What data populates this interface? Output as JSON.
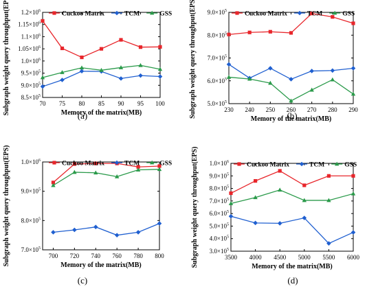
{
  "chart_data": [
    {
      "type": "line",
      "panel_label": "(a)",
      "xlabel": "Memory of the matrix(MB)",
      "ylabel": "Subgraph weight query throughput(EPS)",
      "x": [
        70,
        75,
        80,
        85,
        90,
        95,
        100
      ],
      "xlim": [
        70,
        100
      ],
      "xticks": [
        "70",
        "75",
        "80",
        "85",
        "90",
        "95",
        "100"
      ],
      "yticks": [
        {
          "value": 850000,
          "mantissa": "8.5×10",
          "exp": "5"
        },
        {
          "value": 900000,
          "mantissa": "9.0×10",
          "exp": "5"
        },
        {
          "value": 950000,
          "mantissa": "9.5×10",
          "exp": "5"
        },
        {
          "value": 1000000,
          "mantissa": "1.0×10",
          "exp": "6"
        },
        {
          "value": 1050000,
          "mantissa": "1.05×10",
          "exp": "6"
        },
        {
          "value": 1100000,
          "mantissa": "1.1×10",
          "exp": "6"
        },
        {
          "value": 1150000,
          "mantissa": "1.15×10",
          "exp": "6"
        },
        {
          "value": 1200000,
          "mantissa": "1.2×10",
          "exp": "6"
        }
      ],
      "ylim": [
        850000,
        1200000
      ],
      "legend_position": "top",
      "series": [
        {
          "name": "Cuckoo Matrix",
          "color": "#e8262b",
          "marker": "square",
          "values": [
            1165000,
            1052000,
            1015000,
            1050000,
            1087000,
            1057000,
            1058000
          ]
        },
        {
          "name": "TCM",
          "color": "#1f5fd0",
          "marker": "diamond",
          "values": [
            895000,
            922000,
            958000,
            957000,
            928000,
            940000,
            936000
          ]
        },
        {
          "name": "GSS",
          "color": "#2a9a4a",
          "marker": "triangle",
          "values": [
            932000,
            953000,
            972000,
            962000,
            973000,
            982000,
            966000
          ]
        }
      ]
    },
    {
      "type": "line",
      "panel_label": "(b)",
      "xlabel": "Memory of the matrix(MB)",
      "ylabel": "Subgraph weight query throughput(EPS)",
      "x": [
        230,
        240,
        250,
        260,
        270,
        280,
        290
      ],
      "xlim": [
        230,
        290
      ],
      "xticks": [
        "230",
        "240",
        "250",
        "260",
        "270",
        "280",
        "290"
      ],
      "yticks": [
        {
          "value": 500000,
          "mantissa": "5.0×10",
          "exp": "5"
        },
        {
          "value": 600000,
          "mantissa": "6.0×10",
          "exp": "5"
        },
        {
          "value": 700000,
          "mantissa": "7.0×10",
          "exp": "5"
        },
        {
          "value": 800000,
          "mantissa": "8.0×10",
          "exp": "5"
        },
        {
          "value": 900000,
          "mantissa": "9.0×10",
          "exp": "5"
        }
      ],
      "ylim": [
        500000,
        900000
      ],
      "legend_position": "top",
      "series": [
        {
          "name": "Cuckoo Matrix",
          "color": "#e8262b",
          "marker": "square",
          "values": [
            803000,
            812000,
            815000,
            810000,
            895000,
            880000,
            852000
          ]
        },
        {
          "name": "TCM",
          "color": "#1f5fd0",
          "marker": "diamond",
          "values": [
            672000,
            612000,
            655000,
            607000,
            643000,
            645000,
            655000
          ]
        },
        {
          "name": "GSS",
          "color": "#2a9a4a",
          "marker": "triangle",
          "values": [
            616000,
            608000,
            590000,
            512000,
            560000,
            605000,
            542000
          ]
        }
      ]
    },
    {
      "type": "line",
      "panel_label": "(c)",
      "xlabel": "Memory of the matrix(MB)",
      "ylabel": "Subgraph weight query throughput(EPS)",
      "x": [
        700,
        720,
        740,
        760,
        780,
        800
      ],
      "xlim": [
        690,
        800
      ],
      "xticks": [
        "700",
        "720",
        "740",
        "760",
        "780",
        "800"
      ],
      "yticks": [
        {
          "value": 700000,
          "mantissa": "7.0×10",
          "exp": "5"
        },
        {
          "value": 800000,
          "mantissa": "8.0×10",
          "exp": "5"
        },
        {
          "value": 900000,
          "mantissa": "9.0×10",
          "exp": "5"
        },
        {
          "value": 1000000,
          "mantissa": "1.0×10",
          "exp": "6"
        }
      ],
      "ylim": [
        700000,
        1000000
      ],
      "legend_position": "top",
      "series": [
        {
          "name": "Cuckoo Matrix",
          "color": "#e8262b",
          "marker": "square",
          "values": [
            930000,
            993000,
            995000,
            995000,
            983000,
            986000
          ]
        },
        {
          "name": "TCM",
          "color": "#1f5fd0",
          "marker": "diamond",
          "values": [
            760000,
            768000,
            778000,
            750000,
            760000,
            790000
          ]
        },
        {
          "name": "GSS",
          "color": "#2a9a4a",
          "marker": "triangle",
          "values": [
            920000,
            965000,
            963000,
            950000,
            973000,
            975000
          ]
        }
      ]
    },
    {
      "type": "line",
      "panel_label": "(d)",
      "xlabel": "Memory of the matrix(MB)",
      "ylabel": "Subgraph weight query throughput(EPS)",
      "x": [
        3500,
        4000,
        4500,
        5000,
        5500,
        6000
      ],
      "xlim": [
        3500,
        6000
      ],
      "xticks": [
        "3500",
        "4000",
        "4500",
        "5000",
        "5500",
        "6000"
      ],
      "yticks": [
        {
          "value": 300000,
          "mantissa": "3.0×10",
          "exp": "5"
        },
        {
          "value": 400000,
          "mantissa": "4.0×10",
          "exp": "5"
        },
        {
          "value": 500000,
          "mantissa": "5.0×10",
          "exp": "5"
        },
        {
          "value": 600000,
          "mantissa": "6.0×10",
          "exp": "5"
        },
        {
          "value": 700000,
          "mantissa": "7.0×10",
          "exp": "5"
        },
        {
          "value": 800000,
          "mantissa": "8.0×10",
          "exp": "5"
        },
        {
          "value": 900000,
          "mantissa": "9.0×10",
          "exp": "5"
        },
        {
          "value": 1000000,
          "mantissa": "1.0×10",
          "exp": "6"
        }
      ],
      "ylim": [
        300000,
        1000000
      ],
      "legend_position": "top",
      "series": [
        {
          "name": "Cuckoo Matrix",
          "color": "#e8262b",
          "marker": "square",
          "values": [
            762000,
            860000,
            940000,
            825000,
            900000,
            900000
          ]
        },
        {
          "name": "TCM",
          "color": "#1f5fd0",
          "marker": "diamond",
          "values": [
            578000,
            525000,
            522000,
            565000,
            362000,
            450000
          ]
        },
        {
          "name": "GSS",
          "color": "#2a9a4a",
          "marker": "triangle",
          "values": [
            680000,
            728000,
            788000,
            705000,
            705000,
            758000
          ]
        }
      ]
    }
  ]
}
